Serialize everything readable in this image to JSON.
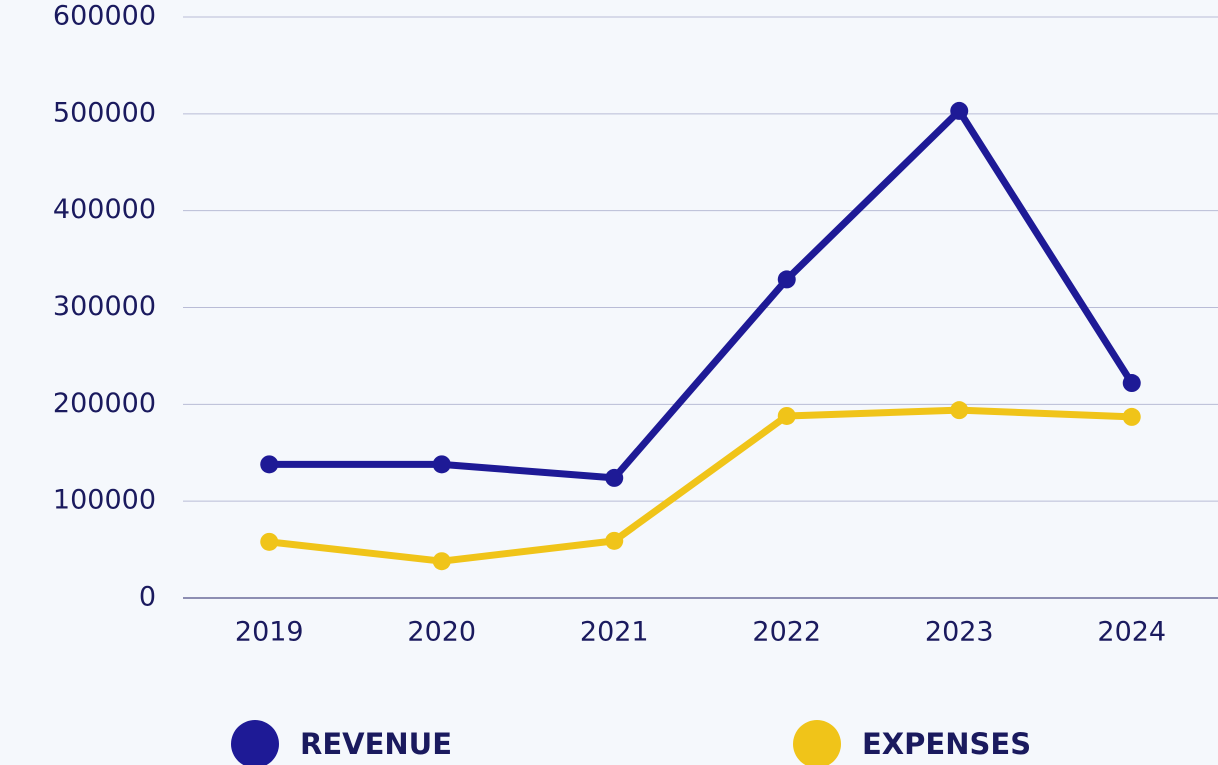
{
  "chart_data": {
    "type": "line",
    "categories": [
      "2019",
      "2020",
      "2021",
      "2022",
      "2023",
      "2024"
    ],
    "series": [
      {
        "name": "REVENUE",
        "color": "#1e1a96",
        "values": [
          138000,
          138000,
          124000,
          329000,
          503000,
          222000
        ]
      },
      {
        "name": "EXPENSES",
        "color": "#f0c419",
        "values": [
          58000,
          38000,
          59000,
          188000,
          194000,
          187000
        ]
      }
    ],
    "ylim": [
      0,
      600000
    ],
    "yticks": [
      0,
      100000,
      200000,
      300000,
      400000,
      500000,
      600000
    ],
    "grid": true,
    "legend": "bottom"
  }
}
